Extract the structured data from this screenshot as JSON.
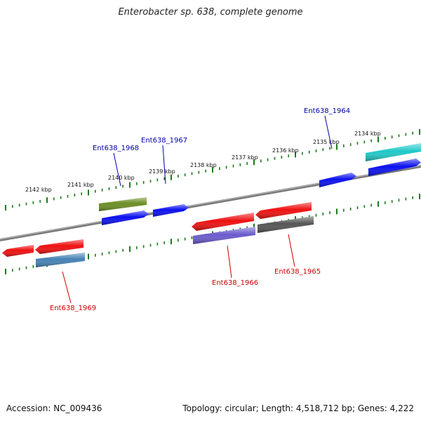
{
  "header": {
    "title": "Enterobacter sp. 638, complete genome"
  },
  "footer": {
    "accession": "Accession: NC_009436",
    "summary": "Topology: circular; Length: 4,518,712 bp; Genes: 4,222"
  },
  "colors": {
    "backbone": "#7a7a7a",
    "ruler": "#1a7a1a",
    "label_forward": "#0000aa",
    "label_reverse": "#cc0000"
  },
  "ruler": {
    "ticks": [
      {
        "label": "2142 kbp"
      },
      {
        "label": "2141 kbp"
      },
      {
        "label": "2140 kbp"
      },
      {
        "label": "2139 kbp"
      },
      {
        "label": "2138 kbp"
      },
      {
        "label": "2137 kbp"
      },
      {
        "label": "2136 kbp"
      },
      {
        "label": "2135 kbp"
      },
      {
        "label": "2134 kbp"
      }
    ]
  },
  "genes": [
    {
      "name": "cds-teal",
      "color": "#1fc8c8",
      "strand": "forward",
      "label": ""
    },
    {
      "name": "cds-blue-right",
      "color": "#0a10ee",
      "strand": "forward",
      "label": ""
    },
    {
      "name": "ent638-1964",
      "color": "#0a10ee",
      "strand": "forward",
      "label": "Ent638_1964"
    },
    {
      "name": "ent638-1967",
      "color": "#0a10ee",
      "strand": "forward",
      "label": "Ent638_1967"
    },
    {
      "name": "ent638-1968",
      "color": "#6b8e23",
      "strand": "forward",
      "label": "Ent638_1968"
    },
    {
      "name": "cds-blue-left",
      "color": "#0a10ee",
      "strand": "forward",
      "label": ""
    },
    {
      "name": "ent638-1965",
      "color": "#ee1010",
      "strand": "reverse",
      "label": "Ent638_1965"
    },
    {
      "name": "ent638-1966",
      "color": "#ee1010",
      "strand": "reverse",
      "label": "Ent638_1966"
    },
    {
      "name": "cds-red-mid",
      "color": "#ee1010",
      "strand": "reverse",
      "label": ""
    },
    {
      "name": "cds-red-left",
      "color": "#ee1010",
      "strand": "reverse",
      "label": ""
    },
    {
      "name": "cds-red-edge",
      "color": "#ee1010",
      "strand": "reverse",
      "label": ""
    },
    {
      "name": "rna-slateblue",
      "color": "#6a5acd",
      "strand": "reverse",
      "label": ""
    },
    {
      "name": "rna-gray",
      "color": "#555555",
      "strand": "reverse",
      "label": ""
    },
    {
      "name": "rna-steelblue",
      "color": "#4682b4",
      "strand": "reverse",
      "label": "Ent638_1969"
    }
  ]
}
